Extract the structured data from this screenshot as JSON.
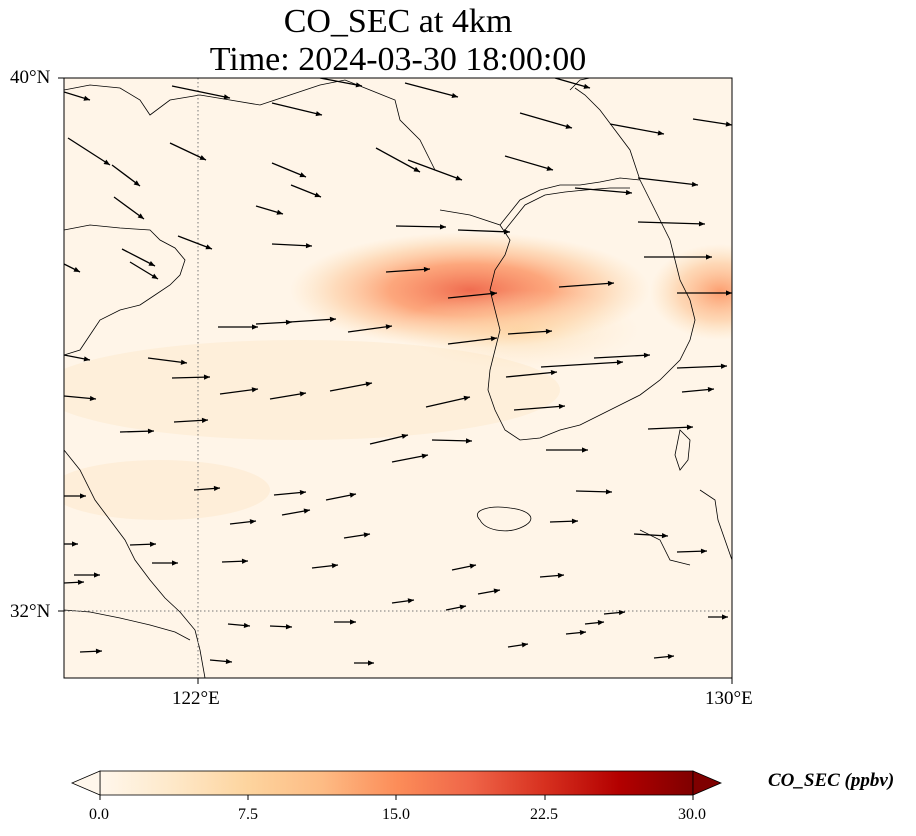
{
  "title_line1": "CO_SEC at 4km",
  "title_line2": "Time: 2024-03-30 18:00:00",
  "map": {
    "lon_range": [
      119.0,
      130.0
    ],
    "lat_range": [
      31.0,
      40.0
    ],
    "lat_ticks": [
      {
        "value": 40,
        "label": "40°N"
      },
      {
        "value": 32,
        "label": "32°N"
      }
    ],
    "lon_ticks": [
      {
        "value": 122,
        "label": "122°E"
      },
      {
        "value": 130,
        "label": "130°E"
      }
    ],
    "gridlines": "dotted at 32°N and 122°E",
    "overlay": "wind vectors (arrows)"
  },
  "colorbar": {
    "title": "CO_SEC (ppbv)",
    "colormap": "OrRd",
    "range": [
      0.0,
      30.0
    ],
    "extend": "both",
    "ticks": [
      "0.0",
      "7.5",
      "15.0",
      "22.5",
      "30.0"
    ],
    "colors": [
      "#fff7ec",
      "#fee8c8",
      "#fdd49e",
      "#fdbb84",
      "#fc8d59",
      "#ef6548",
      "#d7301f",
      "#b30000",
      "#7f0000"
    ]
  },
  "plumes": [
    {
      "region": "central Yellow Sea to west coast of Korea",
      "lon": 126.0,
      "lat": 35.9,
      "value": 14.0
    },
    {
      "region": "eastern edge near 130°E",
      "lon": 129.7,
      "lat": 35.75,
      "value": 13.0
    },
    {
      "region": "southwest Korea",
      "lon": 126.3,
      "lat": 35.4,
      "value": 7.0
    }
  ]
}
